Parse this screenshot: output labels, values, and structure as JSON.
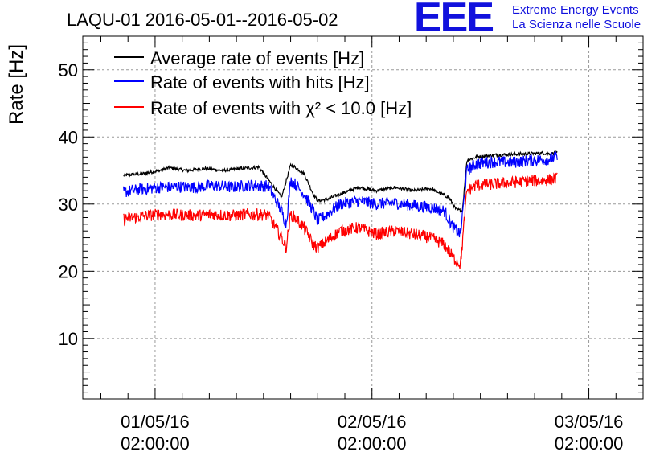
{
  "logo": {
    "letters": "EEE",
    "line1": "Extreme Energy Events",
    "line2": "La Scienza nelle Scuole"
  },
  "colors": {
    "average": "#000000",
    "hits": "#0000ff",
    "chi2": "#ff0000",
    "grid": "#9a9a9a",
    "logo": "#1111dd"
  },
  "chart_data": {
    "type": "line",
    "title": "LAQU-01 2016-05-01--2016-05-02",
    "ylabel": "Rate [Hz]",
    "xlabel": "",
    "ylim": [
      1,
      55
    ],
    "xlim_hours": [
      -3.5,
      58.5
    ],
    "yticks": [
      10,
      20,
      30,
      40,
      50
    ],
    "xticks": [
      {
        "hours": 4.5,
        "label_date": "01/05/16",
        "label_time": "02:00:00"
      },
      {
        "hours": 28.5,
        "label_date": "02/05/16",
        "label_time": "02:00:00"
      },
      {
        "hours": 52.5,
        "label_date": "03/05/16",
        "label_time": "02:00:00"
      }
    ],
    "grid": true,
    "legend": {
      "placement": "top-left",
      "entries": [
        {
          "label": "Average rate of events [Hz]",
          "series": "average"
        },
        {
          "label": "Rate of events with hits [Hz]",
          "series": "hits"
        },
        {
          "label": "Rate of events with χ² < 10.0 [Hz]",
          "series": "chi2"
        }
      ]
    },
    "series": [
      {
        "name": "Average rate of events [Hz]",
        "key": "average",
        "x_hours": [
          1.0,
          3.0,
          5.0,
          6.0,
          8.0,
          10.0,
          12.0,
          14.0,
          16.0,
          18.5,
          19.5,
          20.0,
          21.0,
          22.0,
          22.5,
          23.5,
          25.0,
          27.0,
          29.0,
          31.0,
          33.0,
          35.0,
          37.0,
          37.8,
          38.5,
          39.0,
          40.0,
          42.0,
          44.0,
          46.0,
          47.5,
          48.0,
          49.0
        ],
        "values": [
          34.3,
          34.5,
          35.0,
          35.4,
          35.0,
          35.3,
          35.0,
          35.3,
          35.5,
          31.0,
          35.8,
          35.5,
          34.5,
          31.5,
          30.5,
          30.7,
          31.5,
          32.5,
          32.0,
          32.5,
          32.0,
          32.3,
          31.0,
          29.2,
          29.0,
          36.5,
          37.0,
          37.3,
          37.4,
          37.5,
          37.6,
          37.5,
          37.6
        ]
      },
      {
        "name": "Rate of events with hits [Hz]",
        "key": "hits",
        "x_hours": [
          1.0,
          3.0,
          5.0,
          7.0,
          9.0,
          11.0,
          13.0,
          15.0,
          17.0,
          18.5,
          19.0,
          19.5,
          20.0,
          21.0,
          22.0,
          22.5,
          23.5,
          25.0,
          27.0,
          29.0,
          31.0,
          33.0,
          35.0,
          36.5,
          37.5,
          38.3,
          39.0,
          40.0,
          42.0,
          44.0,
          46.0,
          47.5,
          48.0,
          49.0
        ],
        "values": [
          31.8,
          32.2,
          32.5,
          32.6,
          32.5,
          32.8,
          32.5,
          32.8,
          32.7,
          29.0,
          27.0,
          33.5,
          33.0,
          31.5,
          29.0,
          27.5,
          28.5,
          30.0,
          30.5,
          30.0,
          30.2,
          29.8,
          29.5,
          29.0,
          26.5,
          25.5,
          35.0,
          36.0,
          36.3,
          36.2,
          36.5,
          36.6,
          36.7,
          37.0
        ]
      },
      {
        "name": "Rate of events with χ² < 10.0 [Hz]",
        "key": "chi2",
        "x_hours": [
          1.0,
          3.0,
          5.0,
          7.0,
          9.0,
          11.0,
          13.0,
          15.0,
          17.0,
          18.5,
          19.0,
          19.5,
          20.0,
          21.0,
          22.0,
          22.5,
          23.5,
          25.0,
          27.0,
          29.0,
          31.0,
          33.0,
          35.0,
          36.5,
          37.5,
          38.3,
          39.0,
          40.0,
          42.0,
          44.0,
          46.0,
          47.5,
          48.0,
          49.0
        ],
        "values": [
          27.8,
          28.2,
          28.5,
          28.4,
          28.3,
          28.5,
          28.3,
          28.5,
          28.4,
          25.0,
          23.5,
          28.5,
          28.0,
          26.5,
          24.0,
          23.5,
          24.5,
          26.0,
          26.5,
          25.5,
          26.0,
          25.5,
          25.0,
          24.0,
          22.0,
          21.0,
          32.0,
          32.8,
          33.0,
          33.2,
          33.5,
          33.5,
          33.6,
          33.8
        ]
      }
    ]
  }
}
